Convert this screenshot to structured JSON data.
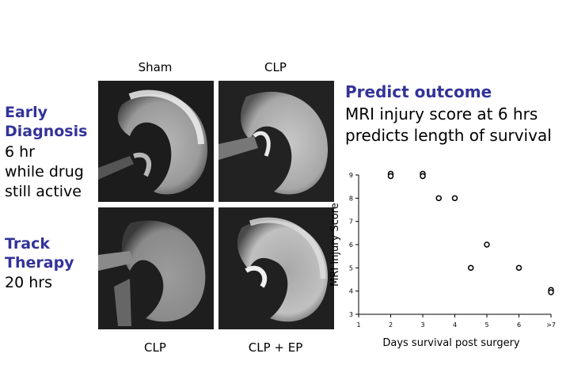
{
  "left_panel": {
    "early_heading_1": "Early",
    "early_heading_2": "Diagnosis",
    "early_body_1": "6 hr",
    "early_body_2": "while drug",
    "early_body_3": "still active",
    "track_heading_1": "Track",
    "track_heading_2": "Therapy",
    "track_body_1": "20 hrs"
  },
  "images": {
    "top_left_label": "Sham",
    "top_right_label": "CLP",
    "bottom_left_label": "CLP",
    "bottom_right_label": "CLP + EP"
  },
  "predict": {
    "title": "Predict outcome",
    "line_1": "MRI injury score at 6 hrs",
    "line_2": "predicts length of survival"
  },
  "chart_data": {
    "type": "scatter",
    "xlabel": "Days survival post surgery",
    "ylabel": "MRI Injury Score",
    "x_ticks": [
      "1",
      "2",
      "3",
      "4",
      "5",
      "6",
      ">7"
    ],
    "y_ticks": [
      "3",
      "4",
      "5",
      "6",
      "7",
      "8",
      "9"
    ],
    "xlim": [
      1,
      7
    ],
    "ylim": [
      3,
      9
    ],
    "grid": false,
    "points": [
      {
        "x": 2,
        "y": 9.05
      },
      {
        "x": 2,
        "y": 8.95
      },
      {
        "x": 3,
        "y": 9.05
      },
      {
        "x": 3,
        "y": 8.95
      },
      {
        "x": 3.5,
        "y": 8
      },
      {
        "x": 4,
        "y": 8
      },
      {
        "x": 4.5,
        "y": 5
      },
      {
        "x": 5,
        "y": 6
      },
      {
        "x": 6,
        "y": 5
      },
      {
        "x": 7,
        "y": 4.05
      },
      {
        "x": 7,
        "y": 3.95
      }
    ]
  }
}
